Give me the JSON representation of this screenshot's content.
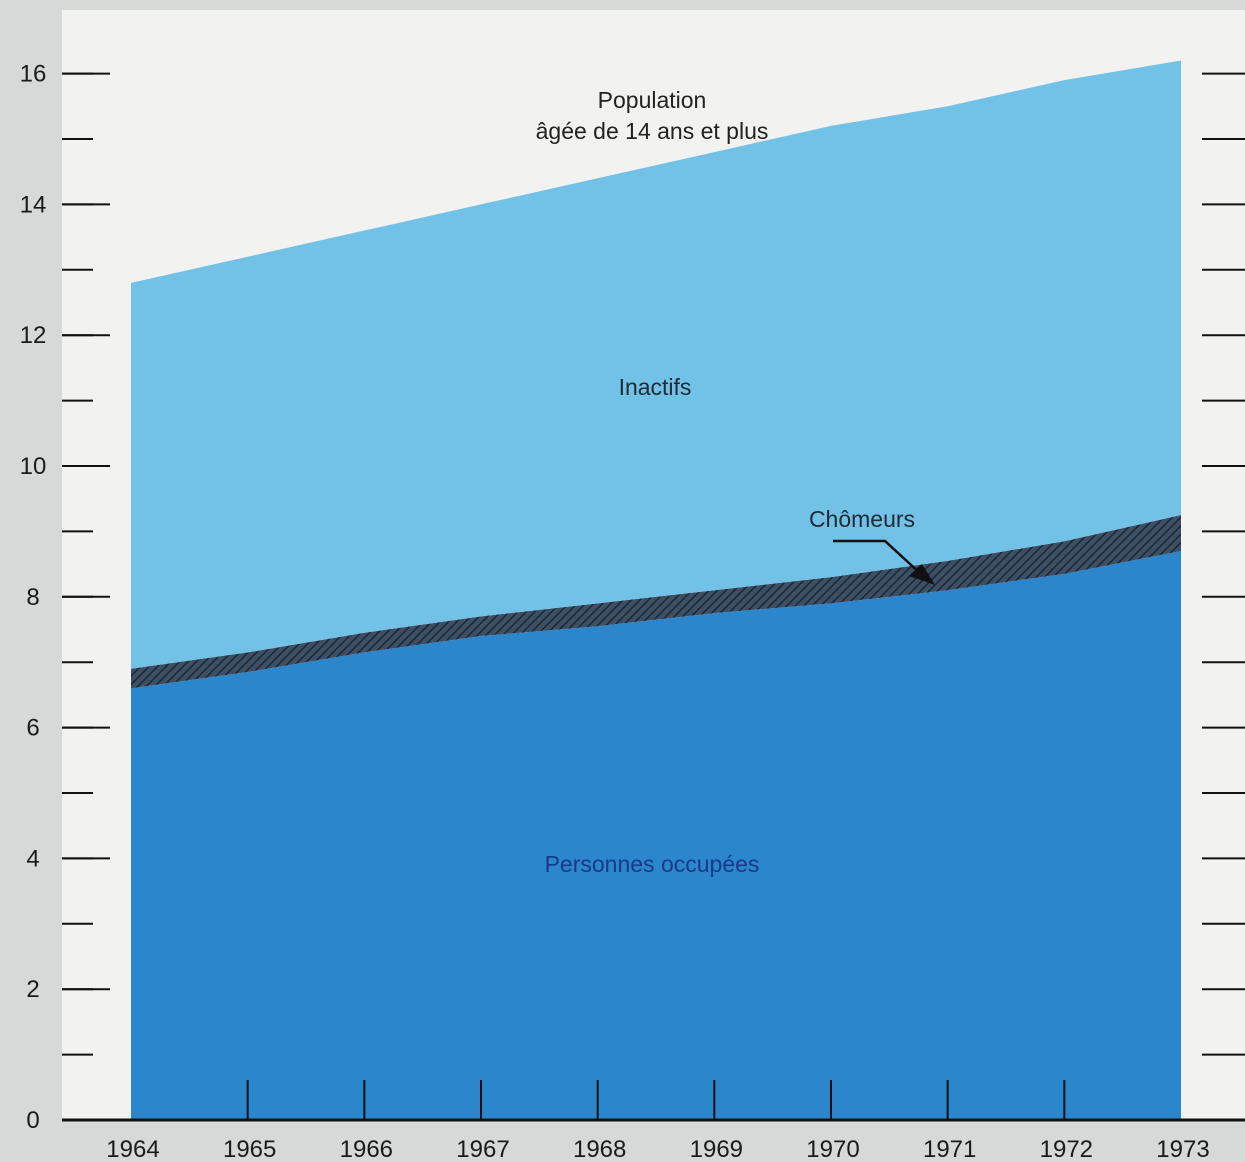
{
  "chart_data": {
    "type": "area",
    "title": "",
    "xlabel": "",
    "ylabel": "",
    "x": [
      1964,
      1965,
      1966,
      1967,
      1968,
      1969,
      1970,
      1971,
      1972,
      1973
    ],
    "x_tick_labels": [
      "1964",
      "1965",
      "1966",
      "1967",
      "1968",
      "1969",
      "1970",
      "1971",
      "1972",
      "1973"
    ],
    "y_tick_labels": [
      "0",
      "2",
      "4",
      "6",
      "8",
      "10",
      "12",
      "14",
      "16"
    ],
    "ylim": [
      0,
      16.5
    ],
    "stacked": true,
    "series": [
      {
        "name": "Personnes occupées",
        "values": [
          6.6,
          6.85,
          7.15,
          7.4,
          7.55,
          7.75,
          7.9,
          8.1,
          8.35,
          8.7
        ],
        "color": "#2b86cb"
      },
      {
        "name": "Chômeurs",
        "values": [
          0.3,
          0.3,
          0.3,
          0.3,
          0.35,
          0.35,
          0.4,
          0.45,
          0.5,
          0.55
        ],
        "color": "#3c4f64"
      },
      {
        "name": "Inactifs",
        "values": [
          5.9,
          6.05,
          6.15,
          6.3,
          6.5,
          6.7,
          6.9,
          6.95,
          7.05,
          6.95
        ],
        "color": "#72c1e6"
      }
    ],
    "total_label": "Population\nâgée de 14 ans et plus",
    "labels": {
      "population_line1": "Population",
      "population_line2": "âgée de 14 ans et plus",
      "inactifs": "Inactifs",
      "chomeurs": "Chômeurs",
      "occupees": "Personnes occupées"
    },
    "colors": {
      "plot_background": "#f2f3f1",
      "outer_background": "#d7d9d8",
      "axis": "#111111"
    }
  }
}
